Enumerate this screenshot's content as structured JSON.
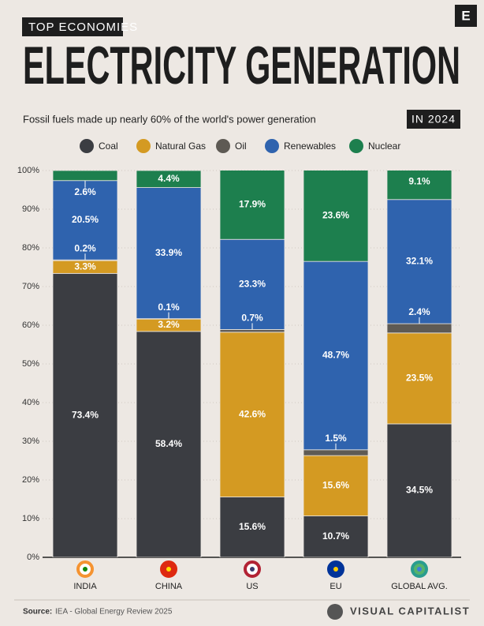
{
  "chart_data": {
    "type": "stacked-bar",
    "kicker": "TOP ECONOMIES",
    "title": "ELECTRICITY GENERATION",
    "subtitle": "Fossil fuels made up nearly 60% of the world's power generation",
    "badge": "IN 2024",
    "logo": "E",
    "categories": [
      "INDIA",
      "CHINA",
      "US",
      "EU",
      "GLOBAL AVG."
    ],
    "series": [
      {
        "name": "Coal",
        "color": "#3b3d42",
        "values": [
          73.4,
          58.4,
          15.6,
          10.7,
          34.5
        ],
        "value_labels": [
          "73.4%",
          "58.4%",
          "15.6%",
          "10.7%",
          "34.5%"
        ]
      },
      {
        "name": "Natural Gas",
        "color": "#d49a22",
        "values": [
          3.3,
          3.2,
          42.6,
          15.6,
          23.5
        ],
        "value_labels": [
          "3.3%",
          "3.2%",
          "42.6%",
          "15.6%",
          "23.5%"
        ]
      },
      {
        "name": "Oil",
        "color": "#5e5a54",
        "values": [
          0.2,
          0.1,
          0.7,
          1.5,
          2.4
        ],
        "value_labels": [
          "0.2%",
          "0.1%",
          "0.7%",
          "1.5%",
          "2.4%"
        ]
      },
      {
        "name": "Renewables",
        "color": "#2f63ae",
        "values": [
          20.5,
          33.9,
          23.3,
          48.7,
          32.1
        ],
        "value_labels": [
          "20.5%",
          "33.9%",
          "23.3%",
          "48.7%",
          "32.1%"
        ]
      },
      {
        "name": "Nuclear",
        "color": "#1d7f4e",
        "values": [
          2.6,
          4.4,
          17.9,
          23.6,
          9.1
        ],
        "value_labels": [
          "2.6%",
          "4.4%",
          "17.9%",
          "23.6%",
          "9.1%"
        ]
      }
    ],
    "ylim": [
      0,
      100
    ],
    "yticks": [
      {
        "value": 0,
        "label": "0%"
      },
      {
        "value": 10,
        "label": "10%"
      },
      {
        "value": 20,
        "label": "20%"
      },
      {
        "value": 30,
        "label": "30%"
      },
      {
        "value": 40,
        "label": "40%"
      },
      {
        "value": 50,
        "label": "50%"
      },
      {
        "value": 60,
        "label": "60%"
      },
      {
        "value": 70,
        "label": "70%"
      },
      {
        "value": 80,
        "label": "80%"
      },
      {
        "value": 90,
        "label": "90%"
      },
      {
        "value": 100,
        "label": "100%"
      }
    ],
    "grid": true,
    "source_label": "Source:",
    "source": "IEA - Global Energy Review 2025",
    "brand": "VISUAL CAPITALIST"
  }
}
